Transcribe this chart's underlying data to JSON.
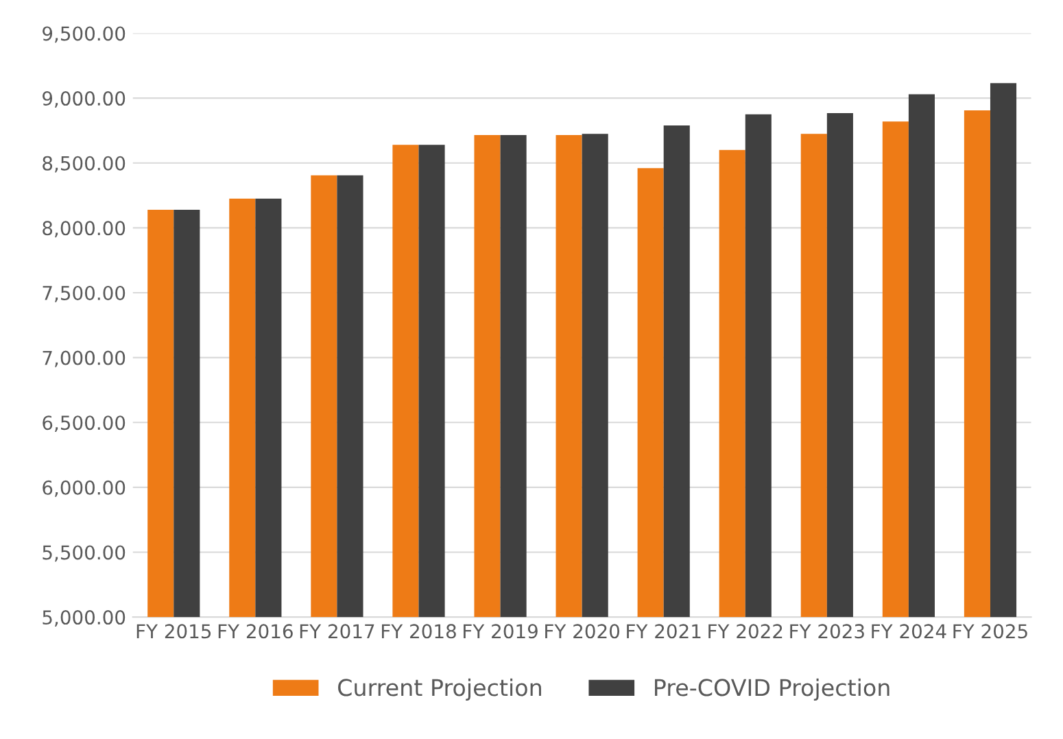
{
  "chart_data": {
    "type": "bar",
    "categories": [
      "FY 2015",
      "FY 2016",
      "FY 2017",
      "FY 2018",
      "FY 2019",
      "FY 2020",
      "FY 2021",
      "FY 2022",
      "FY 2023",
      "FY 2024",
      "FY 2025"
    ],
    "series": [
      {
        "name": "Current Projection",
        "color": "#ee7b16",
        "values": [
          8140,
          8225,
          8405,
          8640,
          8715,
          8715,
          8460,
          8600,
          8725,
          8820,
          8905
        ]
      },
      {
        "name": "Pre-COVID Projection",
        "color": "#404040",
        "values": [
          8140,
          8225,
          8405,
          8640,
          8715,
          8725,
          8790,
          8875,
          8885,
          9030,
          9115
        ]
      }
    ],
    "ylim": [
      5000,
      9500
    ],
    "yticks": [
      {
        "value": 5000,
        "label": "5,000.00"
      },
      {
        "value": 5500,
        "label": "5,500.00"
      },
      {
        "value": 6000,
        "label": "6,000.00"
      },
      {
        "value": 6500,
        "label": "6,500.00"
      },
      {
        "value": 7000,
        "label": "7,000.00"
      },
      {
        "value": 7500,
        "label": "7,500.00"
      },
      {
        "value": 8000,
        "label": "8,000.00"
      },
      {
        "value": 8500,
        "label": "8,500.00"
      },
      {
        "value": 9000,
        "label": "9,000.00"
      },
      {
        "value": 9500,
        "label": "9,500.00"
      }
    ],
    "grid": "y",
    "legend": "bottom"
  }
}
